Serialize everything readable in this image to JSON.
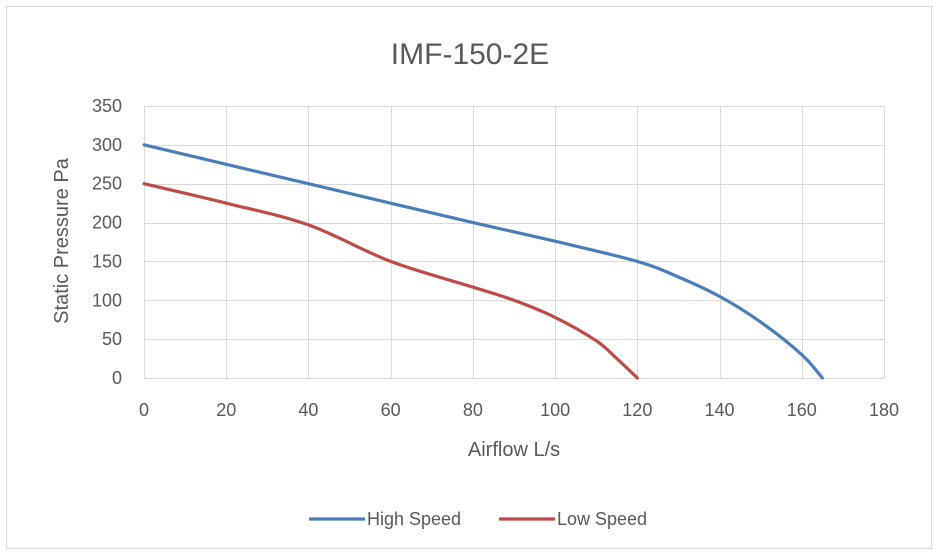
{
  "chart_data": {
    "type": "line",
    "title": "IMF-150-2E",
    "xlabel": "Airflow L/s",
    "ylabel": "Static Pressure Pa",
    "xlim": [
      0,
      180
    ],
    "ylim": [
      0,
      350
    ],
    "xticks": [
      0,
      20,
      40,
      60,
      80,
      100,
      120,
      140,
      160,
      180
    ],
    "yticks": [
      0,
      50,
      100,
      150,
      200,
      250,
      300,
      350
    ],
    "grid": true,
    "legend_position": "bottom",
    "series": [
      {
        "name": "High Speed",
        "color": "#4a7ebb",
        "x": [
          0,
          20,
          40,
          60,
          80,
          100,
          120,
          130,
          140,
          150,
          160,
          165
        ],
        "y": [
          300,
          275,
          250,
          225,
          200,
          176,
          150,
          130,
          105,
          72,
          30,
          0
        ]
      },
      {
        "name": "Low Speed",
        "color": "#be4b48",
        "x": [
          0,
          20,
          40,
          60,
          80,
          90,
          100,
          110,
          115,
          120
        ],
        "y": [
          250,
          225,
          197,
          150,
          117,
          100,
          78,
          48,
          25,
          0
        ]
      }
    ]
  }
}
